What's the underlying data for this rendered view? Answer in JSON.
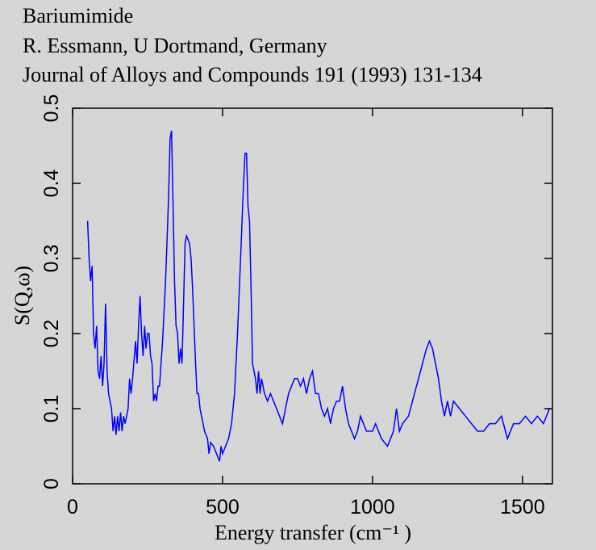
{
  "chart_data": {
    "type": "line",
    "title": "Bariumimide",
    "subtitle": [
      "R. Essmann,  U Dortmand, Germany",
      "Journal of Alloys and Compounds 191 (1993) 131-134"
    ],
    "xlabel": "Energy transfer (cm⁻¹ )",
    "ylabel": "S(Q,ω)",
    "xlim": [
      0,
      1600
    ],
    "ylim": [
      0,
      0.5
    ],
    "xticks": [
      0,
      500,
      1000,
      1500
    ],
    "yticks": [
      0,
      0.1,
      0.2,
      0.3,
      0.4,
      0.5
    ],
    "series": [
      {
        "name": "Bariumimide",
        "color": "#0000ff",
        "x": [
          50,
          55,
          60,
          65,
          70,
          75,
          80,
          85,
          90,
          95,
          100,
          105,
          110,
          115,
          120,
          125,
          130,
          135,
          140,
          145,
          150,
          155,
          160,
          165,
          170,
          175,
          180,
          185,
          190,
          195,
          200,
          210,
          215,
          220,
          225,
          230,
          235,
          240,
          245,
          250,
          255,
          260,
          265,
          270,
          275,
          280,
          285,
          290,
          300,
          310,
          320,
          325,
          330,
          335,
          340,
          345,
          350,
          355,
          360,
          365,
          370,
          375,
          380,
          390,
          395,
          400,
          410,
          415,
          420,
          425,
          430,
          440,
          450,
          455,
          460,
          470,
          480,
          490,
          495,
          500,
          510,
          520,
          530,
          540,
          550,
          560,
          570,
          575,
          580,
          585,
          590,
          595,
          600,
          610,
          615,
          620,
          625,
          630,
          640,
          650,
          660,
          670,
          680,
          690,
          700,
          710,
          720,
          730,
          740,
          750,
          760,
          770,
          780,
          790,
          800,
          810,
          820,
          830,
          840,
          850,
          860,
          870,
          880,
          890,
          900,
          910,
          920,
          930,
          940,
          950,
          960,
          970,
          980,
          1000,
          1010,
          1020,
          1030,
          1050,
          1060,
          1070,
          1080,
          1090,
          1100,
          1120,
          1140,
          1160,
          1180,
          1190,
          1200,
          1220,
          1230,
          1240,
          1250,
          1260,
          1270,
          1290,
          1310,
          1330,
          1350,
          1370,
          1390,
          1410,
          1430,
          1450,
          1470,
          1490,
          1510,
          1530,
          1550,
          1570,
          1590
        ],
        "values": [
          0.35,
          0.3,
          0.27,
          0.29,
          0.2,
          0.18,
          0.21,
          0.15,
          0.14,
          0.17,
          0.13,
          0.16,
          0.24,
          0.15,
          0.12,
          0.11,
          0.1,
          0.07,
          0.09,
          0.065,
          0.09,
          0.07,
          0.095,
          0.07,
          0.09,
          0.08,
          0.09,
          0.1,
          0.14,
          0.12,
          0.14,
          0.19,
          0.16,
          0.21,
          0.25,
          0.2,
          0.17,
          0.21,
          0.18,
          0.2,
          0.2,
          0.17,
          0.16,
          0.11,
          0.12,
          0.11,
          0.13,
          0.13,
          0.19,
          0.27,
          0.38,
          0.46,
          0.47,
          0.37,
          0.27,
          0.21,
          0.2,
          0.16,
          0.18,
          0.16,
          0.24,
          0.32,
          0.33,
          0.32,
          0.3,
          0.26,
          0.16,
          0.12,
          0.12,
          0.1,
          0.09,
          0.07,
          0.06,
          0.04,
          0.055,
          0.05,
          0.04,
          0.03,
          0.05,
          0.04,
          0.05,
          0.06,
          0.08,
          0.12,
          0.2,
          0.3,
          0.4,
          0.44,
          0.44,
          0.37,
          0.35,
          0.26,
          0.16,
          0.14,
          0.12,
          0.15,
          0.12,
          0.14,
          0.12,
          0.11,
          0.12,
          0.11,
          0.1,
          0.09,
          0.08,
          0.1,
          0.12,
          0.13,
          0.14,
          0.14,
          0.13,
          0.14,
          0.12,
          0.14,
          0.15,
          0.12,
          0.12,
          0.1,
          0.09,
          0.1,
          0.08,
          0.1,
          0.11,
          0.11,
          0.13,
          0.1,
          0.08,
          0.07,
          0.06,
          0.07,
          0.09,
          0.08,
          0.07,
          0.07,
          0.08,
          0.07,
          0.06,
          0.05,
          0.06,
          0.07,
          0.1,
          0.07,
          0.08,
          0.09,
          0.12,
          0.15,
          0.18,
          0.19,
          0.18,
          0.14,
          0.11,
          0.09,
          0.11,
          0.09,
          0.11,
          0.1,
          0.09,
          0.08,
          0.07,
          0.07,
          0.08,
          0.08,
          0.09,
          0.06,
          0.08,
          0.08,
          0.09,
          0.08,
          0.09,
          0.08,
          0.1
        ]
      }
    ]
  }
}
